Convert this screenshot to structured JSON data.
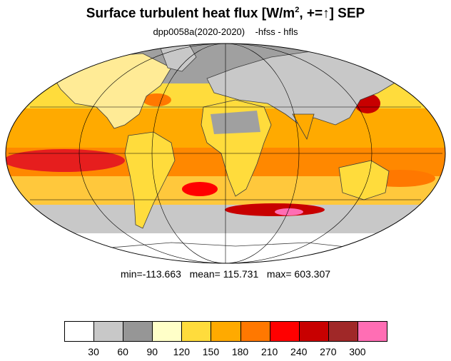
{
  "title": {
    "main": "Surface turbulent heat flux [W/m",
    "sup": "2",
    "rest": ", +=↑]  SEP"
  },
  "subtitle": "dpp0058a(2020-2020)    -hfss - hfls",
  "stats": {
    "text": "min=-113.663   mean= 115.731   max= 603.307",
    "min": -113.663,
    "mean": 115.731,
    "max": 603.307
  },
  "projection": "mollweide",
  "colorbar": {
    "labels": [
      "30",
      "60",
      "90",
      "120",
      "150",
      "180",
      "210",
      "240",
      "270",
      "300"
    ],
    "colors": [
      "#ffffff",
      "#c8c8c8",
      "#969696",
      "#ffffc8",
      "#ffdc3c",
      "#ffaa00",
      "#ff7800",
      "#ff0000",
      "#c80000",
      "#a02828",
      "#ff6eb4"
    ]
  },
  "colors": {
    "ocean_base": "#ffc83c",
    "land_base": "#ffffc8",
    "coast": "#3c3c3c",
    "grid": "#000000"
  }
}
